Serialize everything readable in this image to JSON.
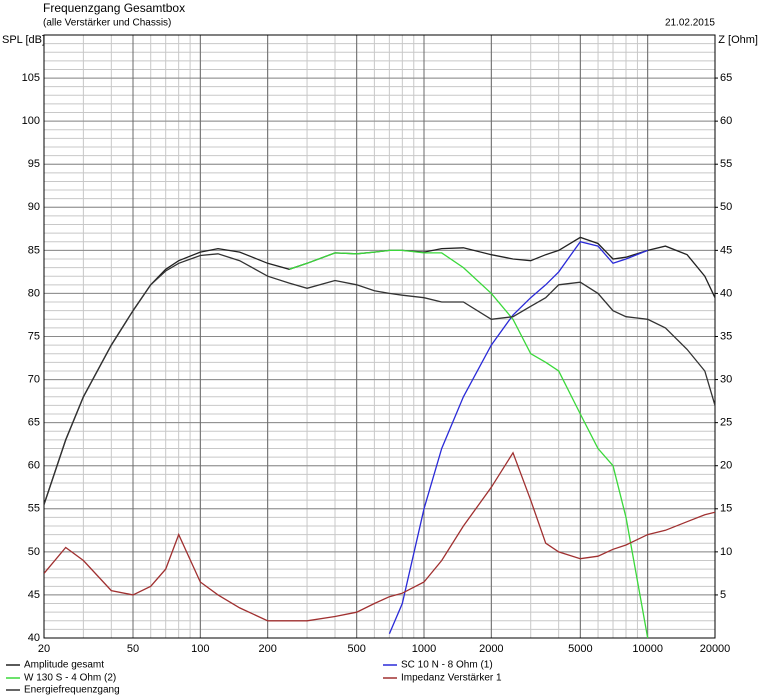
{
  "chart_data": {
    "type": "line",
    "title": "Frequenzgang Gesamtbox",
    "subtitle": "(alle Verstärker und Chassis)",
    "date": "21.02.2015",
    "y_label": "SPL [dB]",
    "y2_label": "Z [Ohm]",
    "log_x": true,
    "grid": true,
    "x": [
      20,
      25,
      30,
      40,
      50,
      60,
      70,
      80,
      100,
      120,
      150,
      200,
      250,
      300,
      400,
      500,
      600,
      700,
      800,
      1000,
      1200,
      1500,
      2000,
      2500,
      3000,
      3500,
      4000,
      5000,
      6000,
      7000,
      8000,
      10000,
      12000,
      15000,
      18000,
      20000
    ],
    "xlim": [
      20,
      20000
    ],
    "xticks": [
      20,
      50,
      100,
      200,
      500,
      1000,
      2000,
      5000,
      10000,
      20000
    ],
    "ylim": [
      40,
      110
    ],
    "yticks": [
      40,
      45,
      50,
      55,
      60,
      65,
      70,
      75,
      80,
      85,
      90,
      95,
      100,
      105
    ],
    "y2lim": [
      0,
      70
    ],
    "y2ticks": [
      5,
      10,
      15,
      20,
      25,
      30,
      35,
      40,
      45,
      50,
      55,
      60,
      65
    ],
    "series": [
      {
        "name": "Amplitude gesamt",
        "color": "#222222",
        "values": [
          55.5,
          63,
          68,
          74,
          78,
          81,
          82.8,
          83.8,
          84.8,
          85.2,
          84.8,
          83.5,
          82.8,
          83.5,
          84.7,
          84.6,
          84.8,
          85,
          85,
          84.8,
          85.2,
          85.3,
          84.5,
          84,
          83.8,
          84.5,
          85,
          86.5,
          85.8,
          84,
          84.2,
          85,
          85.5,
          84.5,
          82,
          79.5
        ]
      },
      {
        "name": "SC 10 N - 8 Ohm (1)",
        "color": "#2a2ad8",
        "values": [
          null,
          null,
          null,
          null,
          null,
          null,
          null,
          null,
          null,
          null,
          null,
          null,
          null,
          null,
          null,
          null,
          null,
          40.5,
          44,
          55,
          62,
          68,
          74,
          77.5,
          79.5,
          81,
          82.5,
          86,
          85.5,
          83.5,
          84,
          85,
          null,
          null,
          null,
          null
        ]
      },
      {
        "name": "W 130 S - 4 Ohm (2)",
        "color": "#3ad83a",
        "values": [
          null,
          null,
          null,
          null,
          null,
          null,
          null,
          null,
          null,
          null,
          null,
          null,
          82.8,
          83.5,
          84.7,
          84.6,
          84.8,
          85,
          85,
          84.7,
          84.7,
          83,
          80,
          77,
          73,
          72,
          71,
          66,
          62,
          60,
          54,
          40,
          null,
          null,
          null,
          null
        ]
      },
      {
        "name": "Impedanz Verstärker 1",
        "color": "#a03030",
        "axis": "y2",
        "values": [
          7.5,
          10.5,
          9,
          5.5,
          5,
          6,
          8,
          12,
          6.5,
          5,
          3.5,
          2,
          2,
          2,
          2.5,
          3,
          4,
          4.8,
          5.2,
          6.5,
          9,
          13,
          17.5,
          21.5,
          16,
          11,
          10,
          9.2,
          9.5,
          10.3,
          10.8,
          12,
          12.5,
          13.5,
          14.3,
          14.6
        ]
      },
      {
        "name": "Energiefrequenzgang",
        "color": "#333333",
        "values": [
          55.5,
          63,
          68,
          74,
          78,
          81,
          82.6,
          83.5,
          84.4,
          84.6,
          83.8,
          82,
          81.2,
          80.6,
          81.5,
          81,
          80.3,
          80,
          79.8,
          79.5,
          79,
          79,
          77,
          77.3,
          78.5,
          79.5,
          81,
          81.3,
          80,
          78,
          77.3,
          77,
          76,
          73.5,
          71,
          67
        ]
      }
    ]
  }
}
